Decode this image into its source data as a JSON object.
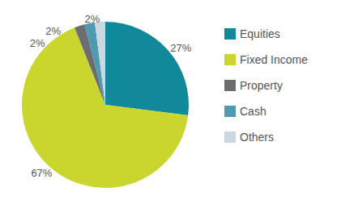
{
  "chart_data": {
    "type": "pie",
    "categories": [
      "Equities",
      "Fixed Income",
      "Property",
      "Cash",
      "Others"
    ],
    "values": [
      27,
      67,
      2,
      2,
      2
    ],
    "value_labels": [
      "27%",
      "67%",
      "2%",
      "2%",
      "2%"
    ],
    "colors": [
      "#10899a",
      "#c8d62e",
      "#6b6d70",
      "#4f9ab3",
      "#cbd8e0"
    ],
    "data_labels": true,
    "legend": "right"
  }
}
